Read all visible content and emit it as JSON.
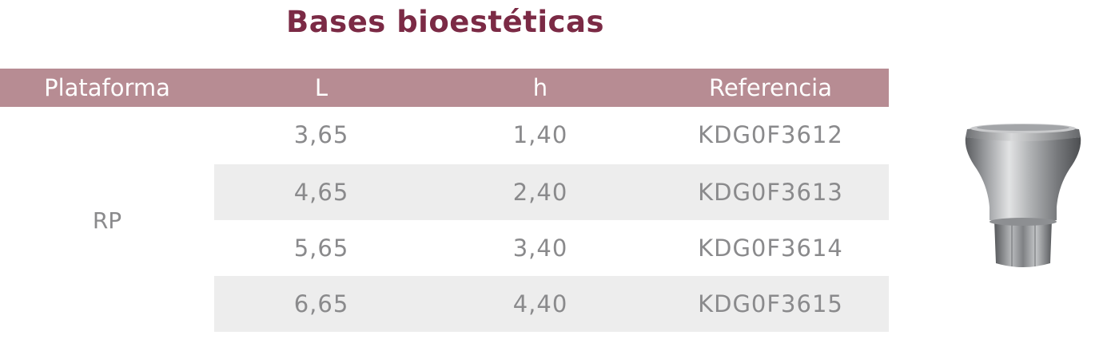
{
  "title": "Bases bioestéticas",
  "table": {
    "headers": [
      "Plataforma",
      "L",
      "h",
      "Referencia"
    ],
    "platform": "RP",
    "rows": [
      {
        "L": "3,65",
        "h": "1,40",
        "ref": "KDG0F3612"
      },
      {
        "L": "4,65",
        "h": "2,40",
        "ref": "KDG0F3613"
      },
      {
        "L": "5,65",
        "h": "3,40",
        "ref": "KDG0F3614"
      },
      {
        "L": "6,65",
        "h": "4,40",
        "ref": "KDG0F3615"
      }
    ]
  },
  "colors": {
    "title": "#7b2a45",
    "header_background": "#b78c93",
    "header_text": "#ffffff",
    "row_shade": "#ededed",
    "body_text": "#8a8a8c"
  }
}
